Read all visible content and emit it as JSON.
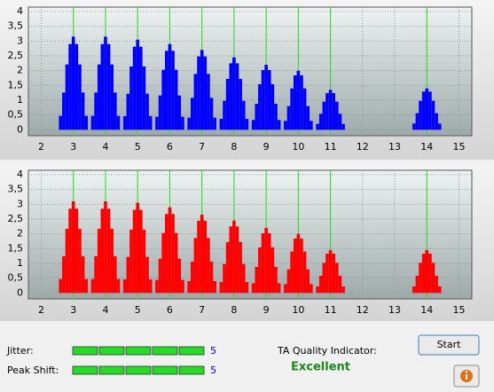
{
  "chart_data": [
    {
      "type": "bar",
      "color": "#0000ff",
      "marker_color": "#22dd22",
      "x": [
        2.6,
        2.7,
        2.8,
        2.9,
        3.0,
        3.1,
        3.2,
        3.3,
        3.4,
        3.6,
        3.7,
        3.8,
        3.9,
        4.0,
        4.1,
        4.2,
        4.3,
        4.4,
        4.6,
        4.7,
        4.8,
        4.9,
        5.0,
        5.1,
        5.2,
        5.3,
        5.4,
        5.6,
        5.7,
        5.8,
        5.9,
        6.0,
        6.1,
        6.2,
        6.3,
        6.4,
        6.6,
        6.7,
        6.8,
        6.9,
        7.0,
        7.1,
        7.2,
        7.3,
        7.4,
        7.6,
        7.7,
        7.8,
        7.9,
        8.0,
        8.1,
        8.2,
        8.3,
        8.4,
        8.6,
        8.7,
        8.8,
        8.9,
        9.0,
        9.1,
        9.2,
        9.3,
        9.4,
        9.6,
        9.7,
        9.8,
        9.9,
        10.0,
        10.1,
        10.2,
        10.3,
        10.4,
        10.6,
        10.7,
        10.8,
        10.9,
        11.0,
        11.1,
        11.2,
        11.3,
        11.4,
        13.6,
        13.7,
        13.8,
        13.9,
        14.0,
        14.1,
        14.2,
        14.3,
        14.4
      ],
      "values": [
        0.47,
        1.26,
        2.21,
        2.9,
        3.15,
        2.9,
        2.21,
        1.26,
        0.47,
        0.47,
        1.26,
        2.21,
        2.9,
        3.15,
        2.9,
        2.21,
        1.26,
        0.47,
        0.46,
        1.22,
        2.14,
        2.81,
        3.05,
        2.81,
        2.14,
        1.22,
        0.46,
        0.44,
        1.16,
        2.03,
        2.67,
        2.9,
        2.67,
        2.03,
        1.16,
        0.44,
        0.41,
        1.08,
        1.89,
        2.48,
        2.7,
        2.48,
        1.89,
        1.08,
        0.41,
        0.37,
        0.98,
        1.72,
        2.25,
        2.45,
        2.25,
        1.72,
        0.98,
        0.37,
        0.33,
        0.88,
        1.54,
        2.02,
        2.2,
        2.02,
        1.54,
        0.88,
        0.33,
        0.3,
        0.8,
        1.4,
        1.84,
        2,
        1.84,
        1.4,
        0.8,
        0.3,
        0.2,
        0.54,
        0.95,
        1.24,
        1.35,
        1.24,
        0.95,
        0.54,
        0.2,
        0.21,
        0.56,
        0.98,
        1.29,
        1.4,
        1.29,
        0.98,
        0.56,
        0.21
      ],
      "xlim": [
        1.6,
        15.4
      ],
      "ylim": [
        -0.2,
        4.15
      ],
      "xticks": [
        2,
        3,
        4,
        5,
        6,
        7,
        8,
        9,
        10,
        11,
        12,
        13,
        14,
        15
      ],
      "yticks": [
        0,
        {
          "value": 0.5,
          "label": "0,5"
        },
        1,
        {
          "value": 1.5,
          "label": "1,5"
        },
        2,
        {
          "value": 2.5,
          "label": "2,5"
        },
        3,
        {
          "value": 3.5,
          "label": "3,5"
        },
        4
      ],
      "markers": [
        3,
        4,
        5,
        6,
        7,
        8,
        9,
        10,
        11,
        14
      ],
      "grid": true
    },
    {
      "type": "bar",
      "color": "#ff0000",
      "marker_color": "#22dd22",
      "x": [
        2.6,
        2.7,
        2.8,
        2.9,
        3.0,
        3.1,
        3.2,
        3.3,
        3.4,
        3.6,
        3.7,
        3.8,
        3.9,
        4.0,
        4.1,
        4.2,
        4.3,
        4.4,
        4.6,
        4.7,
        4.8,
        4.9,
        5.0,
        5.1,
        5.2,
        5.3,
        5.4,
        5.6,
        5.7,
        5.8,
        5.9,
        6.0,
        6.1,
        6.2,
        6.3,
        6.4,
        6.6,
        6.7,
        6.8,
        6.9,
        7.0,
        7.1,
        7.2,
        7.3,
        7.4,
        7.6,
        7.7,
        7.8,
        7.9,
        8.0,
        8.1,
        8.2,
        8.3,
        8.4,
        8.6,
        8.7,
        8.8,
        8.9,
        9.0,
        9.1,
        9.2,
        9.3,
        9.4,
        9.6,
        9.7,
        9.8,
        9.9,
        10.0,
        10.1,
        10.2,
        10.3,
        10.4,
        10.6,
        10.7,
        10.8,
        10.9,
        11.0,
        11.1,
        11.2,
        11.3,
        11.4,
        13.6,
        13.7,
        13.8,
        13.9,
        14.0,
        14.1,
        14.2,
        14.3,
        14.4
      ],
      "values": [
        0.47,
        1.24,
        2.17,
        2.85,
        3.1,
        2.85,
        2.17,
        1.24,
        0.47,
        0.47,
        1.24,
        2.17,
        2.85,
        3.1,
        2.85,
        2.17,
        1.24,
        0.47,
        0.46,
        1.22,
        2.14,
        2.81,
        3.05,
        2.81,
        2.14,
        1.22,
        0.46,
        0.44,
        1.16,
        2.03,
        2.67,
        2.9,
        2.67,
        2.03,
        1.16,
        0.44,
        0.4,
        1.06,
        1.86,
        2.44,
        2.65,
        2.44,
        1.86,
        1.06,
        0.4,
        0.37,
        0.98,
        1.72,
        2.25,
        2.45,
        2.25,
        1.72,
        0.98,
        0.37,
        0.33,
        0.88,
        1.54,
        2.02,
        2.2,
        2.02,
        1.54,
        0.88,
        0.33,
        0.3,
        0.8,
        1.4,
        1.84,
        2,
        1.84,
        1.4,
        0.8,
        0.3,
        0.22,
        0.58,
        1.02,
        1.33,
        1.45,
        1.33,
        1.02,
        0.58,
        0.22,
        0.22,
        0.58,
        1.02,
        1.33,
        1.45,
        1.33,
        1.02,
        0.58,
        0.22
      ],
      "xlim": [
        1.6,
        15.4
      ],
      "ylim": [
        -0.2,
        4.15
      ],
      "xticks": [
        2,
        3,
        4,
        5,
        6,
        7,
        8,
        9,
        10,
        11,
        12,
        13,
        14,
        15
      ],
      "yticks": [
        0,
        {
          "value": 0.5,
          "label": "0,5"
        },
        1,
        {
          "value": 1.5,
          "label": "1,5"
        },
        2,
        {
          "value": 2.5,
          "label": "2,5"
        },
        3,
        {
          "value": 3.5,
          "label": "3,5"
        },
        4
      ],
      "markers": [
        3,
        4,
        5,
        6,
        7,
        8,
        9,
        10,
        11,
        14
      ],
      "grid": true
    }
  ],
  "ui": {
    "jitter": {
      "label": "Jitter:",
      "value": 5
    },
    "peak_shift": {
      "label": "Peak Shift:",
      "value": 5
    },
    "ta_quality": {
      "label": "TA Quality Indicator:",
      "value": "Excellent"
    },
    "start_button": "Start"
  }
}
